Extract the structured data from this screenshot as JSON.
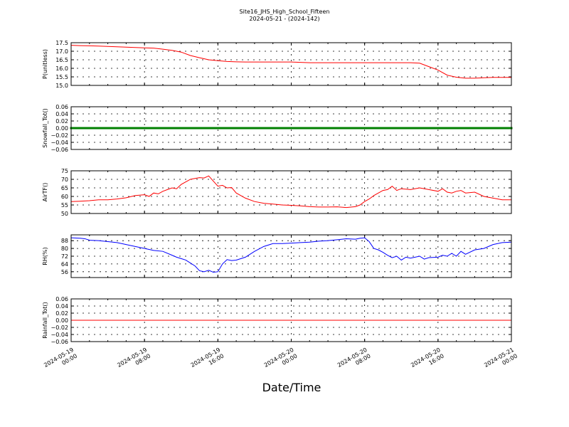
{
  "title": "Site16_JHS_High_School_Fifteen",
  "subtitle": "2024-05-21 - (2024-142)",
  "xlabel": "Date/Time",
  "x_ticks": [
    {
      "x": 0,
      "line1": "2024-05-19",
      "line2": "00:00"
    },
    {
      "x": 8,
      "line1": "2024-05-19",
      "line2": "08:00"
    },
    {
      "x": 16,
      "line1": "2024-05-19",
      "line2": "16:00"
    },
    {
      "x": 24,
      "line1": "2024-05-20",
      "line2": "00:00"
    },
    {
      "x": 32,
      "line1": "2024-05-20",
      "line2": "08:00"
    },
    {
      "x": 40,
      "line1": "2024-05-20",
      "line2": "16:00"
    },
    {
      "x": 48,
      "line1": "2024-05-21",
      "line2": "00:00"
    }
  ],
  "chart_data": [
    {
      "type": "line",
      "ylabel": "P(unitless)",
      "ylim": [
        15.0,
        17.5
      ],
      "yticks": [
        15.0,
        15.5,
        16.0,
        16.5,
        17.0,
        17.5
      ],
      "ytick_labels": [
        "15.0",
        "15.5",
        "16.0",
        "16.5",
        "17.0",
        "17.5"
      ],
      "color": "#ff0000",
      "markers": false,
      "grid": true,
      "series": [
        {
          "x": [
            0,
            1,
            2,
            3,
            4,
            5,
            6,
            7,
            8,
            9,
            10,
            11,
            12,
            13,
            14,
            15,
            16,
            17,
            18,
            19,
            20,
            21,
            22,
            23,
            24,
            25,
            26,
            27,
            28,
            29,
            30,
            31,
            32,
            33,
            34,
            35,
            36,
            37,
            38,
            39,
            40,
            41,
            42,
            43,
            44,
            45,
            46,
            47,
            48
          ],
          "values": [
            17.35,
            17.33,
            17.32,
            17.3,
            17.28,
            17.26,
            17.24,
            17.22,
            17.2,
            17.18,
            17.12,
            17.05,
            16.95,
            16.75,
            16.62,
            16.5,
            16.45,
            16.4,
            16.38,
            16.37,
            16.37,
            16.37,
            16.37,
            16.37,
            16.37,
            16.35,
            16.33,
            16.33,
            16.33,
            16.33,
            16.33,
            16.33,
            16.33,
            16.33,
            16.33,
            16.33,
            16.33,
            16.33,
            16.3,
            16.1,
            15.9,
            15.6,
            15.48,
            15.42,
            15.42,
            15.45,
            15.47,
            15.47,
            15.47
          ]
        }
      ]
    },
    {
      "type": "line",
      "ylabel": "Snowfall_Tot()",
      "ylim": [
        -0.06,
        0.06
      ],
      "yticks": [
        -0.06,
        -0.04,
        -0.02,
        0.0,
        0.02,
        0.04,
        0.06
      ],
      "ytick_labels": [
        "−0.06",
        "−0.04",
        "−0.02",
        "0.00",
        "0.02",
        "0.04",
        "0.06"
      ],
      "color": "#008000",
      "markers": true,
      "grid": true,
      "series": [
        {
          "x": [
            0,
            48
          ],
          "values": [
            0.0,
            0.0
          ]
        }
      ]
    },
    {
      "type": "line",
      "ylabel": "AirTF()",
      "ylim": [
        50,
        75
      ],
      "yticks": [
        50,
        55,
        60,
        65,
        70,
        75
      ],
      "ytick_labels": [
        "50",
        "55",
        "60",
        "65",
        "70",
        "75"
      ],
      "color": "#ff0000",
      "markers": false,
      "grid": true,
      "series": [
        {
          "x": [
            0,
            1,
            2,
            3,
            4,
            5,
            6,
            7,
            8,
            8.5,
            9,
            9.5,
            10,
            10.5,
            11,
            11.5,
            12,
            12.5,
            13,
            13.5,
            14,
            14.5,
            15,
            15.5,
            16,
            16.5,
            17,
            17.5,
            18,
            19,
            20,
            21,
            22,
            23,
            24,
            25,
            26,
            27,
            28,
            29,
            30,
            31,
            31.5,
            32,
            32.5,
            33,
            33.5,
            34,
            34.5,
            35,
            35.5,
            36,
            37,
            38,
            39,
            40,
            40.5,
            41,
            41.5,
            42,
            42.5,
            43,
            44,
            45,
            46,
            47,
            48
          ],
          "values": [
            57,
            57.2,
            57.5,
            58,
            58,
            58.5,
            59.2,
            60.5,
            61,
            60,
            62,
            61.5,
            63,
            64,
            65,
            64.5,
            67,
            68.5,
            70,
            70.5,
            71,
            70.8,
            72,
            69,
            66,
            66.5,
            65,
            65.2,
            62,
            59,
            57,
            56,
            55.5,
            55,
            54.8,
            54.5,
            54,
            53.8,
            53.8,
            53.9,
            53.5,
            54,
            55,
            57,
            58.5,
            60.5,
            62,
            63.5,
            64,
            66,
            63.5,
            64.5,
            64,
            65,
            64,
            63,
            64.5,
            62.5,
            62,
            63,
            63.5,
            62,
            62.5,
            60,
            59,
            58,
            58
          ]
        }
      ]
    },
    {
      "type": "line",
      "ylabel": "RH(%)",
      "ylim": [
        50,
        94
      ],
      "yticks": [
        56,
        64,
        72,
        80,
        88
      ],
      "ytick_labels": [
        "56",
        "64",
        "72",
        "80",
        "88"
      ],
      "color": "#0000ff",
      "markers": false,
      "grid": true,
      "series": [
        {
          "x": [
            0,
            1,
            1.5,
            2,
            3,
            4,
            5,
            6,
            7,
            8,
            9,
            10,
            11,
            11.5,
            12,
            12.5,
            13,
            13.5,
            14,
            14.5,
            15,
            15.5,
            16,
            16.5,
            17,
            17.5,
            18,
            19,
            20,
            21,
            22,
            23,
            24,
            25,
            26,
            27,
            28,
            29,
            30,
            31,
            31.5,
            32,
            32.5,
            33,
            33.5,
            34,
            34.5,
            35,
            35.5,
            36,
            36.5,
            37,
            38,
            38.5,
            39,
            40,
            40.5,
            41,
            41.5,
            42,
            42.5,
            43,
            44,
            45,
            46,
            47,
            48
          ],
          "values": [
            91,
            90.5,
            90,
            88.5,
            88,
            87,
            86,
            84,
            82,
            80,
            78,
            77,
            73,
            71,
            69.5,
            68,
            65,
            62,
            57,
            56,
            57.5,
            55.5,
            56,
            64,
            68.5,
            67.5,
            68,
            71,
            77,
            82,
            85,
            85,
            85.5,
            86,
            86.5,
            87.5,
            88,
            89,
            90,
            89.5,
            90.5,
            91,
            87,
            80,
            78.5,
            76,
            73,
            70.5,
            72,
            68,
            71,
            70,
            72,
            69,
            70.5,
            71,
            73,
            72,
            75,
            72,
            77,
            74,
            78.5,
            80,
            84,
            86,
            86.5
          ]
        }
      ]
    },
    {
      "type": "line",
      "ylabel": "Rainfall_Tot()",
      "ylim": [
        -0.06,
        0.06
      ],
      "yticks": [
        -0.06,
        -0.04,
        -0.02,
        0.0,
        0.02,
        0.04,
        0.06
      ],
      "ytick_labels": [
        "−0.06",
        "−0.04",
        "−0.02",
        "0.00",
        "0.02",
        "0.04",
        "0.06"
      ],
      "color": "#ff0000",
      "markers": false,
      "grid": true,
      "series": [
        {
          "x": [
            0,
            48
          ],
          "values": [
            0.0,
            0.0
          ]
        }
      ]
    }
  ]
}
